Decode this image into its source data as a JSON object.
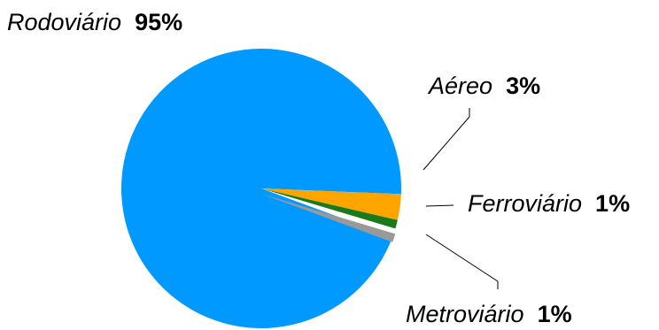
{
  "chart_data": {
    "type": "pie",
    "slices": [
      {
        "name": "Rodoviário",
        "label": "95%",
        "value": 95,
        "color": "#0099FF"
      },
      {
        "name": "Aéreo",
        "label": "3%",
        "value": 3,
        "color": "#FFA500"
      },
      {
        "name": "Ferroviário",
        "label": "1%",
        "value": 1,
        "color": "#1A7A1A"
      },
      {
        "name": "Metroviário",
        "label": "1%",
        "value": 1,
        "color": "#999999"
      }
    ]
  }
}
